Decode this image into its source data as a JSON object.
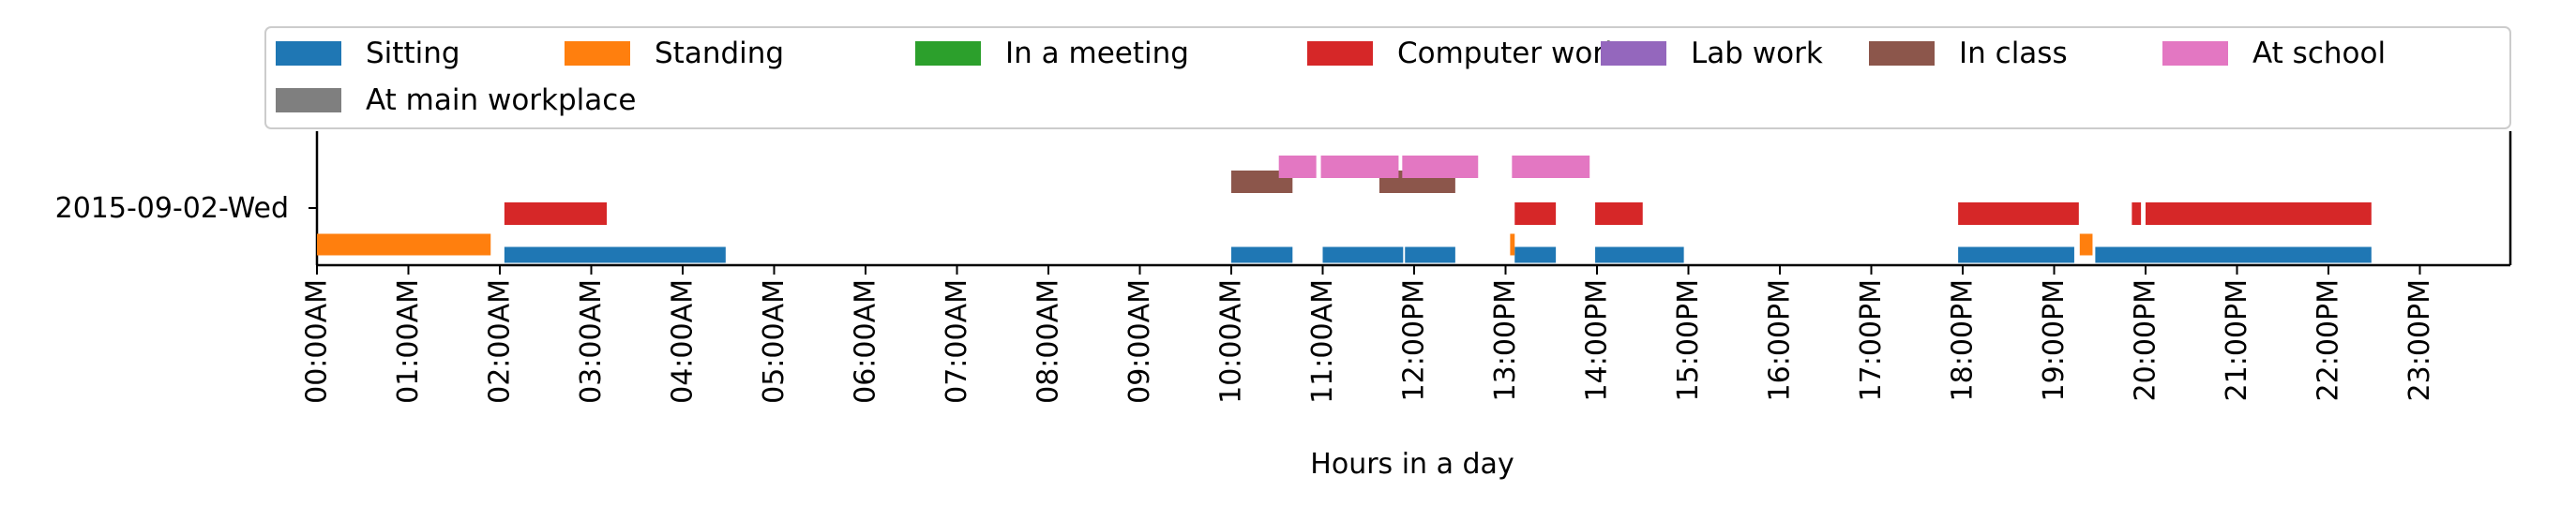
{
  "chart_data": {
    "type": "timeline",
    "xlabel": "Hours in a day",
    "ylabel": "",
    "day_label": "2015-09-02-Wed",
    "xlim": [
      0,
      24
    ],
    "x_ticks": [
      {
        "value": 0,
        "label": "00:00AM"
      },
      {
        "value": 1,
        "label": "01:00AM"
      },
      {
        "value": 2,
        "label": "02:00AM"
      },
      {
        "value": 3,
        "label": "03:00AM"
      },
      {
        "value": 4,
        "label": "04:00AM"
      },
      {
        "value": 5,
        "label": "05:00AM"
      },
      {
        "value": 6,
        "label": "06:00AM"
      },
      {
        "value": 7,
        "label": "07:00AM"
      },
      {
        "value": 8,
        "label": "08:00AM"
      },
      {
        "value": 9,
        "label": "09:00AM"
      },
      {
        "value": 10,
        "label": "10:00AM"
      },
      {
        "value": 11,
        "label": "11:00AM"
      },
      {
        "value": 12,
        "label": "12:00PM"
      },
      {
        "value": 13,
        "label": "13:00PM"
      },
      {
        "value": 14,
        "label": "14:00PM"
      },
      {
        "value": 15,
        "label": "15:00PM"
      },
      {
        "value": 16,
        "label": "16:00PM"
      },
      {
        "value": 17,
        "label": "17:00PM"
      },
      {
        "value": 18,
        "label": "18:00PM"
      },
      {
        "value": 19,
        "label": "19:00PM"
      },
      {
        "value": 20,
        "label": "20:00PM"
      },
      {
        "value": 21,
        "label": "21:00PM"
      },
      {
        "value": 22,
        "label": "22:00PM"
      },
      {
        "value": 23,
        "label": "23:00PM"
      }
    ],
    "legend_position": "top",
    "grid": false,
    "series": [
      {
        "name": "Sitting",
        "color": "#1f77b4",
        "intervals": [
          [
            2.05,
            4.47
          ],
          [
            10.0,
            10.67
          ],
          [
            11.0,
            11.88
          ],
          [
            11.9,
            12.45
          ],
          [
            13.1,
            13.55
          ],
          [
            13.98,
            14.95
          ],
          [
            17.95,
            19.22
          ],
          [
            19.45,
            22.47
          ]
        ]
      },
      {
        "name": "Standing",
        "color": "#ff7f0e",
        "intervals": [
          [
            0.0,
            1.9
          ],
          [
            13.05,
            13.1
          ],
          [
            19.28,
            19.42
          ]
        ]
      },
      {
        "name": "In a meeting",
        "color": "#2ca02c",
        "intervals": []
      },
      {
        "name": "Computer work",
        "color": "#d62728",
        "intervals": [
          [
            2.05,
            3.17
          ],
          [
            13.1,
            13.55
          ],
          [
            13.98,
            14.5
          ],
          [
            17.95,
            19.27
          ],
          [
            19.85,
            19.95
          ],
          [
            20.0,
            22.47
          ]
        ]
      },
      {
        "name": "Lab work",
        "color": "#9467bd",
        "intervals": []
      },
      {
        "name": "In class",
        "color": "#8c564b",
        "intervals": [
          [
            10.0,
            10.67
          ],
          [
            11.62,
            12.45
          ]
        ]
      },
      {
        "name": "At school",
        "color": "#e377c2",
        "intervals": [
          [
            10.52,
            10.93
          ],
          [
            10.98,
            11.83
          ],
          [
            11.87,
            12.7
          ],
          [
            13.07,
            13.92
          ]
        ]
      },
      {
        "name": "At main workplace",
        "color": "#7f7f7f",
        "intervals": []
      }
    ]
  }
}
